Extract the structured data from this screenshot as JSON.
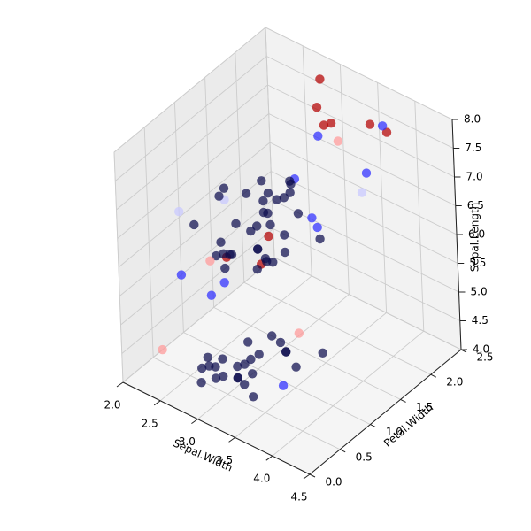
{
  "chart_data": {
    "type": "scatter",
    "projection": "3d",
    "title": "",
    "xlabel": "Sepal.Width",
    "ylabel": "Petal.Width",
    "zlabel": "Sepal.Length",
    "xlim": [
      2.0,
      4.5
    ],
    "ylim": [
      0.0,
      2.5
    ],
    "zlim": [
      4.0,
      8.0
    ],
    "xticks": [
      "2.0",
      "2.5",
      "3.0",
      "3.5",
      "4.0",
      "4.5"
    ],
    "yticks": [
      "0.0",
      "0.5",
      "1.0",
      "1.5",
      "2.0",
      "2.5"
    ],
    "zticks": [
      "4.0",
      "4.5",
      "5.0",
      "5.5",
      "6.0",
      "6.5",
      "7.0",
      "7.5",
      "8.0"
    ],
    "grid": true,
    "legend": "none",
    "colors": {
      "navy": "#0d0d4d",
      "blue": "#2d2dff",
      "red": "#b30000",
      "pink": "#ff9999",
      "lightblue": "#c8c8ff"
    },
    "points": [
      {
        "x": 3.5,
        "y": 0.2,
        "z": 5.1,
        "c": "navy"
      },
      {
        "x": 3.0,
        "y": 0.2,
        "z": 4.9,
        "c": "navy"
      },
      {
        "x": 3.2,
        "y": 0.2,
        "z": 4.7,
        "c": "navy"
      },
      {
        "x": 3.1,
        "y": 0.2,
        "z": 4.6,
        "c": "navy"
      },
      {
        "x": 3.6,
        "y": 0.2,
        "z": 5.0,
        "c": "navy"
      },
      {
        "x": 3.9,
        "y": 0.4,
        "z": 5.4,
        "c": "navy"
      },
      {
        "x": 3.4,
        "y": 0.3,
        "z": 4.6,
        "c": "navy"
      },
      {
        "x": 3.4,
        "y": 0.2,
        "z": 5.0,
        "c": "navy"
      },
      {
        "x": 2.9,
        "y": 0.2,
        "z": 4.4,
        "c": "navy"
      },
      {
        "x": 3.1,
        "y": 0.1,
        "z": 4.9,
        "c": "navy"
      },
      {
        "x": 3.7,
        "y": 0.2,
        "z": 5.4,
        "c": "navy"
      },
      {
        "x": 3.4,
        "y": 0.2,
        "z": 4.8,
        "c": "navy"
      },
      {
        "x": 3.0,
        "y": 0.1,
        "z": 4.8,
        "c": "navy"
      },
      {
        "x": 4.0,
        "y": 0.2,
        "z": 5.8,
        "c": "navy"
      },
      {
        "x": 4.4,
        "y": 0.4,
        "z": 5.7,
        "c": "navy"
      },
      {
        "x": 3.9,
        "y": 0.4,
        "z": 5.4,
        "c": "navy"
      },
      {
        "x": 3.5,
        "y": 0.3,
        "z": 5.1,
        "c": "navy"
      },
      {
        "x": 3.8,
        "y": 0.3,
        "z": 5.7,
        "c": "navy"
      },
      {
        "x": 3.3,
        "y": 0.5,
        "z": 5.1,
        "c": "navy"
      },
      {
        "x": 3.4,
        "y": 0.2,
        "z": 4.8,
        "c": "navy"
      },
      {
        "x": 3.2,
        "y": 0.2,
        "z": 5.0,
        "c": "navy"
      },
      {
        "x": 3.1,
        "y": 0.2,
        "z": 4.8,
        "c": "navy"
      },
      {
        "x": 3.6,
        "y": 0.2,
        "z": 4.6,
        "c": "navy"
      },
      {
        "x": 2.3,
        "y": 0.3,
        "z": 4.5,
        "c": "pink"
      },
      {
        "x": 4.0,
        "y": 0.5,
        "z": 5.7,
        "c": "pink"
      },
      {
        "x": 4.1,
        "y": 0.1,
        "z": 5.2,
        "c": "blue"
      },
      {
        "x": 4.2,
        "y": 0.2,
        "z": 5.5,
        "c": "navy"
      },
      {
        "x": 3.2,
        "y": 1.4,
        "z": 7.0,
        "c": "navy"
      },
      {
        "x": 3.2,
        "y": 1.5,
        "z": 6.4,
        "c": "navy"
      },
      {
        "x": 3.1,
        "y": 1.5,
        "z": 6.9,
        "c": "navy"
      },
      {
        "x": 2.3,
        "y": 1.3,
        "z": 5.5,
        "c": "navy"
      },
      {
        "x": 2.8,
        "y": 1.5,
        "z": 6.5,
        "c": "navy"
      },
      {
        "x": 2.8,
        "y": 1.3,
        "z": 5.7,
        "c": "navy"
      },
      {
        "x": 3.3,
        "y": 1.6,
        "z": 6.3,
        "c": "blue"
      },
      {
        "x": 2.4,
        "y": 1.0,
        "z": 4.9,
        "c": "blue"
      },
      {
        "x": 2.9,
        "y": 1.3,
        "z": 6.6,
        "c": "navy"
      },
      {
        "x": 2.7,
        "y": 1.4,
        "z": 5.2,
        "c": "navy"
      },
      {
        "x": 2.0,
        "y": 1.0,
        "z": 5.0,
        "c": "blue"
      },
      {
        "x": 3.0,
        "y": 1.5,
        "z": 5.9,
        "c": "navy"
      },
      {
        "x": 2.2,
        "y": 1.0,
        "z": 6.0,
        "c": "navy"
      },
      {
        "x": 2.9,
        "y": 1.4,
        "z": 6.1,
        "c": "navy"
      },
      {
        "x": 2.9,
        "y": 1.3,
        "z": 5.6,
        "c": "navy"
      },
      {
        "x": 3.1,
        "y": 1.4,
        "z": 6.7,
        "c": "navy"
      },
      {
        "x": 3.0,
        "y": 1.5,
        "z": 5.6,
        "c": "navy"
      },
      {
        "x": 2.7,
        "y": 1.0,
        "z": 5.8,
        "c": "navy"
      },
      {
        "x": 2.2,
        "y": 1.5,
        "z": 6.2,
        "c": "navy"
      },
      {
        "x": 2.5,
        "y": 1.1,
        "z": 5.6,
        "c": "navy"
      },
      {
        "x": 3.2,
        "y": 1.8,
        "z": 5.9,
        "c": "blue"
      },
      {
        "x": 2.8,
        "y": 1.3,
        "z": 6.1,
        "c": "navy"
      },
      {
        "x": 2.5,
        "y": 1.5,
        "z": 6.3,
        "c": "navy"
      },
      {
        "x": 2.8,
        "y": 1.2,
        "z": 6.1,
        "c": "navy"
      },
      {
        "x": 2.9,
        "y": 1.3,
        "z": 6.4,
        "c": "navy"
      },
      {
        "x": 3.0,
        "y": 1.4,
        "z": 6.6,
        "c": "navy"
      },
      {
        "x": 2.8,
        "y": 1.4,
        "z": 6.8,
        "c": "navy"
      },
      {
        "x": 3.0,
        "y": 1.7,
        "z": 6.7,
        "c": "blue"
      },
      {
        "x": 2.6,
        "y": 1.0,
        "z": 5.5,
        "c": "navy"
      },
      {
        "x": 2.4,
        "y": 1.1,
        "z": 5.5,
        "c": "navy"
      },
      {
        "x": 2.7,
        "y": 1.6,
        "z": 6.0,
        "c": "navy"
      },
      {
        "x": 3.4,
        "y": 1.6,
        "z": 6.0,
        "c": "navy"
      },
      {
        "x": 3.1,
        "y": 1.5,
        "z": 6.7,
        "c": "navy"
      },
      {
        "x": 2.3,
        "y": 1.3,
        "z": 6.3,
        "c": "navy"
      },
      {
        "x": 3.0,
        "y": 1.3,
        "z": 5.6,
        "c": "navy"
      },
      {
        "x": 2.5,
        "y": 1.2,
        "z": 5.5,
        "c": "navy"
      },
      {
        "x": 2.6,
        "y": 1.2,
        "z": 6.1,
        "c": "navy"
      },
      {
        "x": 3.0,
        "y": 1.2,
        "z": 5.7,
        "c": "navy"
      },
      {
        "x": 2.5,
        "y": 1.1,
        "z": 5.1,
        "c": "blue"
      },
      {
        "x": 2.8,
        "y": 1.3,
        "z": 5.7,
        "c": "navy"
      },
      {
        "x": 2.2,
        "y": 1.5,
        "z": 6.0,
        "c": "lightblue"
      },
      {
        "x": 2.0,
        "y": 1.0,
        "z": 6.1,
        "c": "lightblue"
      },
      {
        "x": 3.4,
        "y": 2.3,
        "z": 6.2,
        "c": "lightblue"
      },
      {
        "x": 3.3,
        "y": 2.5,
        "z": 6.3,
        "c": "blue"
      },
      {
        "x": 3.8,
        "y": 2.2,
        "z": 7.7,
        "c": "blue"
      },
      {
        "x": 3.0,
        "y": 2.1,
        "z": 7.1,
        "c": "blue"
      },
      {
        "x": 3.1,
        "y": 2.3,
        "z": 6.9,
        "c": "pink"
      },
      {
        "x": 2.4,
        "y": 1.0,
        "z": 5.5,
        "c": "pink"
      },
      {
        "x": 2.5,
        "y": 1.7,
        "z": 4.9,
        "c": "red"
      },
      {
        "x": 2.7,
        "y": 1.6,
        "z": 5.6,
        "c": "red"
      },
      {
        "x": 2.2,
        "y": 1.5,
        "z": 5.0,
        "c": "red"
      },
      {
        "x": 3.0,
        "y": 2.2,
        "z": 7.2,
        "c": "red"
      },
      {
        "x": 3.6,
        "y": 2.5,
        "z": 7.2,
        "c": "red"
      },
      {
        "x": 2.8,
        "y": 2.4,
        "z": 7.7,
        "c": "red"
      },
      {
        "x": 3.8,
        "y": 2.0,
        "z": 7.9,
        "c": "red"
      },
      {
        "x": 3.0,
        "y": 2.1,
        "z": 7.6,
        "c": "red"
      },
      {
        "x": 3.1,
        "y": 2.2,
        "z": 7.3,
        "c": "red"
      }
    ]
  }
}
